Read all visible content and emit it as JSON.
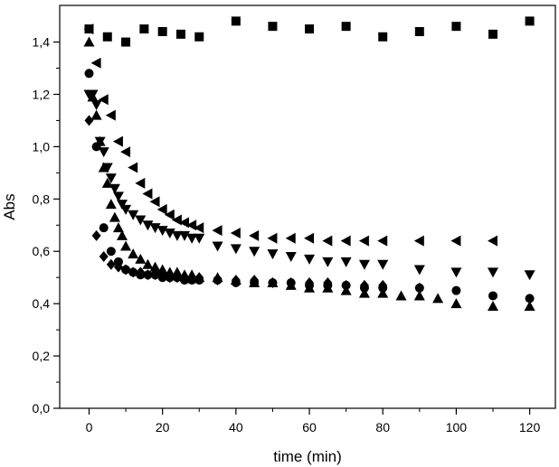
{
  "chart_data": {
    "type": "scatter",
    "title": "",
    "xlabel": "time (min)",
    "ylabel": "Abs",
    "xlim": [
      -8,
      127
    ],
    "ylim": [
      0,
      1.54
    ],
    "xticks": [
      0,
      20,
      40,
      60,
      80,
      100,
      120
    ],
    "yticks": [
      0.0,
      0.2,
      0.4,
      0.6,
      0.8,
      1.0,
      1.2,
      1.4
    ],
    "xtick_labels": [
      "0",
      "20",
      "40",
      "60",
      "80",
      "100",
      "120"
    ],
    "ytick_labels": [
      "0,0",
      "0,2",
      "0,4",
      "0,6",
      "0,8",
      "1,0",
      "1,2",
      "1,4"
    ],
    "grid": false,
    "legend": "none",
    "marker_color": "#000000",
    "series": [
      {
        "marker": "square",
        "x": [
          0,
          5,
          10,
          15,
          20,
          25,
          30,
          40,
          50,
          60,
          70,
          80,
          90,
          100,
          110,
          120
        ],
        "y": [
          1.45,
          1.42,
          1.4,
          1.45,
          1.44,
          1.43,
          1.42,
          1.48,
          1.46,
          1.45,
          1.46,
          1.42,
          1.44,
          1.46,
          1.43,
          1.48
        ]
      },
      {
        "marker": "triangle-left",
        "x": [
          0,
          2,
          4,
          6,
          8,
          10,
          12,
          14,
          16,
          18,
          20,
          22,
          24,
          26,
          28,
          30,
          35,
          40,
          45,
          50,
          55,
          60,
          65,
          70,
          75,
          80,
          90,
          100,
          110
        ],
        "y": [
          1.45,
          1.32,
          1.18,
          1.12,
          1.02,
          0.98,
          0.92,
          0.86,
          0.82,
          0.79,
          0.76,
          0.74,
          0.72,
          0.71,
          0.7,
          0.69,
          0.68,
          0.67,
          0.66,
          0.65,
          0.65,
          0.65,
          0.64,
          0.64,
          0.64,
          0.64,
          0.64,
          0.64,
          0.64
        ]
      },
      {
        "marker": "triangle-down",
        "x": [
          0,
          1,
          2,
          3,
          4,
          5,
          6,
          7,
          8,
          9,
          10,
          12,
          14,
          16,
          18,
          20,
          22,
          24,
          26,
          28,
          30,
          35,
          40,
          45,
          50,
          55,
          60,
          65,
          70,
          75,
          80,
          90,
          100,
          110,
          120
        ],
        "y": [
          1.2,
          1.2,
          1.16,
          1.02,
          0.98,
          0.92,
          0.88,
          0.84,
          0.81,
          0.78,
          0.76,
          0.74,
          0.72,
          0.7,
          0.69,
          0.68,
          0.67,
          0.66,
          0.66,
          0.65,
          0.65,
          0.62,
          0.61,
          0.6,
          0.59,
          0.58,
          0.57,
          0.56,
          0.56,
          0.55,
          0.55,
          0.53,
          0.52,
          0.52,
          0.51
        ]
      },
      {
        "marker": "circle",
        "x": [
          0,
          2,
          4,
          6,
          8,
          10,
          12,
          14,
          16,
          18,
          20,
          22,
          24,
          26,
          28,
          30,
          35,
          40,
          45,
          50,
          55,
          60,
          65,
          70,
          75,
          80,
          90,
          100,
          110,
          120
        ],
        "y": [
          1.28,
          1.0,
          0.69,
          0.6,
          0.56,
          0.53,
          0.52,
          0.51,
          0.51,
          0.51,
          0.5,
          0.5,
          0.5,
          0.49,
          0.49,
          0.49,
          0.49,
          0.48,
          0.48,
          0.48,
          0.48,
          0.47,
          0.47,
          0.47,
          0.46,
          0.46,
          0.46,
          0.45,
          0.43,
          0.42
        ]
      },
      {
        "marker": "triangle-up",
        "x": [
          0,
          1,
          2,
          3,
          4,
          5,
          6,
          7,
          8,
          9,
          10,
          12,
          14,
          16,
          18,
          20,
          22,
          24,
          26,
          28,
          30,
          35,
          40,
          45,
          50,
          55,
          60,
          65,
          70,
          75,
          80,
          85,
          90,
          95,
          100,
          110,
          120
        ],
        "y": [
          1.4,
          1.19,
          1.12,
          1.02,
          0.92,
          0.86,
          0.78,
          0.73,
          0.69,
          0.66,
          0.62,
          0.59,
          0.57,
          0.55,
          0.54,
          0.53,
          0.52,
          0.52,
          0.51,
          0.51,
          0.5,
          0.5,
          0.49,
          0.48,
          0.48,
          0.47,
          0.46,
          0.46,
          0.45,
          0.44,
          0.44,
          0.43,
          0.43,
          0.42,
          0.4,
          0.39,
          0.39
        ]
      },
      {
        "marker": "diamond",
        "x": [
          0,
          2,
          4,
          6,
          8,
          10,
          12,
          14,
          16,
          18,
          20,
          22,
          24,
          26,
          28,
          30,
          35,
          40,
          45,
          50,
          55,
          60,
          65,
          70,
          75,
          80,
          90
        ],
        "y": [
          1.1,
          0.66,
          0.58,
          0.55,
          0.54,
          0.53,
          0.52,
          0.52,
          0.51,
          0.51,
          0.51,
          0.5,
          0.5,
          0.5,
          0.5,
          0.5,
          0.49,
          0.49,
          0.49,
          0.48,
          0.48,
          0.48,
          0.48,
          0.47,
          0.47,
          0.47,
          0.46
        ]
      }
    ]
  }
}
